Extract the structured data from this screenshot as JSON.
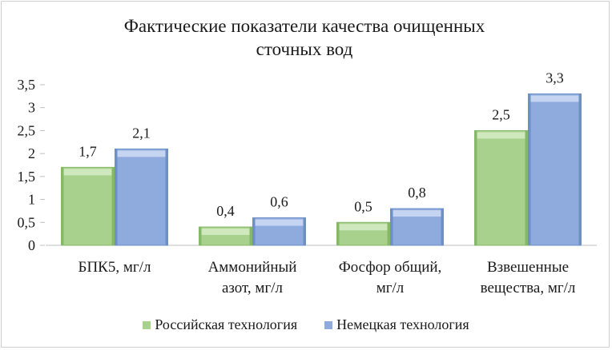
{
  "chart_data": {
    "type": "bar",
    "title_lines": [
      "Фактические показатели качества очищенных",
      "сточных вод"
    ],
    "categories": [
      [
        "БПК5, мг/л"
      ],
      [
        "Аммонийный",
        "азот, мг/л"
      ],
      [
        "Фосфор общий,",
        "мг/л"
      ],
      [
        "Взвешенные",
        "вещества, мг/л"
      ]
    ],
    "series": [
      {
        "name": "Российская технология",
        "values": [
          1.7,
          0.4,
          0.5,
          2.5
        ],
        "labels": [
          "1,7",
          "0,4",
          "0,5",
          "2,5"
        ],
        "color": "#a9d18e",
        "top_color": "#cfe8bd",
        "dark_color": "#86b86a"
      },
      {
        "name": "Немецкая технология",
        "values": [
          2.1,
          0.6,
          0.8,
          3.3
        ],
        "labels": [
          "2,1",
          "0,6",
          "0,8",
          "3,3"
        ],
        "color": "#8faadc",
        "top_color": "#c5d4f0",
        "dark_color": "#6f8fc9"
      }
    ],
    "ylim": [
      0,
      3.5
    ],
    "yticks": [
      0,
      0.5,
      1,
      1.5,
      2,
      2.5,
      3,
      3.5
    ],
    "ytick_labels": [
      "0",
      "0,5",
      "1",
      "1,5",
      "2",
      "2,5",
      "3",
      "3,5"
    ],
    "grid": false,
    "legend_position": "bottom"
  }
}
